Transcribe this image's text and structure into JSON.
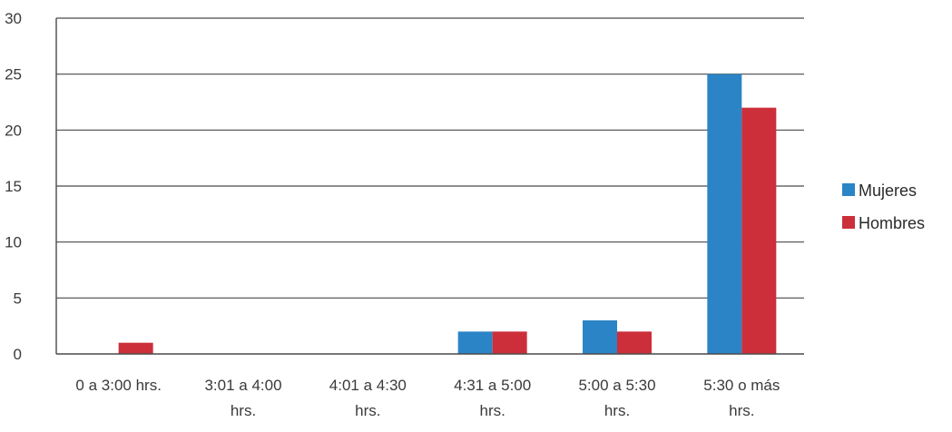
{
  "chart_data": {
    "type": "bar",
    "title": "",
    "xlabel": "",
    "ylabel": "",
    "categories": [
      [
        "0 a 3:00 hrs."
      ],
      [
        "3:01 a 4:00",
        "hrs."
      ],
      [
        "4:01 a 4:30",
        "hrs."
      ],
      [
        "4:31 a 5:00",
        "hrs."
      ],
      [
        "5:00 a 5:30",
        "hrs."
      ],
      [
        "5:30 o más",
        "hrs."
      ]
    ],
    "series": [
      {
        "name": "Mujeres",
        "values": [
          0,
          0,
          0,
          2,
          3,
          25
        ]
      },
      {
        "name": "Hombres",
        "values": [
          1,
          0,
          0,
          2,
          2,
          22
        ]
      }
    ],
    "ylim": [
      0,
      30
    ],
    "yticks": [
      0,
      5,
      10,
      15,
      20,
      25,
      30
    ],
    "grid": true,
    "legend_position": "right"
  },
  "colors": {
    "Mujeres": "#2b84c6",
    "Hombres": "#cc2f3a"
  }
}
